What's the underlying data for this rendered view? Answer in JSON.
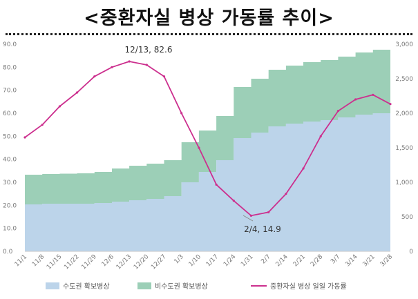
{
  "title": "<중환자실 병상 가동률 추이>",
  "chart_data": {
    "type": "area",
    "x": [
      "11/1",
      "11/8",
      "11/15",
      "11/22",
      "11/29",
      "12/6",
      "12/13",
      "12/20",
      "12/27",
      "1/3",
      "1/10",
      "1/17",
      "1/24",
      "1/31",
      "2/7",
      "2/14",
      "2/21",
      "2/28",
      "3/7",
      "3/14",
      "3/21",
      "3/28"
    ],
    "ylim_left": [
      0,
      90
    ],
    "ylim_right": [
      0,
      3000
    ],
    "yticks_left": [
      "0.0",
      "10.0",
      "20.0",
      "30.0",
      "40.0",
      "50.0",
      "60.0",
      "70.0",
      "80.0",
      "90.0"
    ],
    "yticks_right": [
      "0",
      "500",
      "1,000",
      "1,500",
      "2,000",
      "2,500",
      "3,000"
    ],
    "legend_position": "bottom",
    "grid": false,
    "series": [
      {
        "name": "수도권 확보병상",
        "axis": "right",
        "color": "#bcd4ea",
        "values": [
          680,
          690,
          690,
          690,
          700,
          720,
          740,
          760,
          800,
          1000,
          1150,
          1320,
          1640,
          1720,
          1810,
          1850,
          1880,
          1900,
          1940,
          1980,
          2000,
          2000
        ]
      },
      {
        "name": "비수도권 확보병상",
        "axis": "right",
        "color": "#9ccfb7",
        "values": [
          430,
          430,
          435,
          440,
          450,
          480,
          500,
          510,
          520,
          580,
          600,
          640,
          740,
          780,
          820,
          840,
          860,
          870,
          880,
          900,
          920,
          820
        ]
      },
      {
        "name": "중환자실 병상 일일 가동률",
        "axis": "left",
        "color": "#cc2f8e",
        "values": [
          49.5,
          55,
          63,
          69,
          76,
          80,
          82.5,
          81,
          76,
          60,
          45,
          29,
          22,
          15.5,
          17,
          25,
          36,
          50,
          61,
          66,
          68,
          64
        ]
      }
    ],
    "annotations": [
      {
        "label": "12/13, 82.6",
        "x": "12/13",
        "y": 82.6
      },
      {
        "label": "2/4, 14.9",
        "x": "2/4",
        "y": 14.9
      }
    ]
  }
}
